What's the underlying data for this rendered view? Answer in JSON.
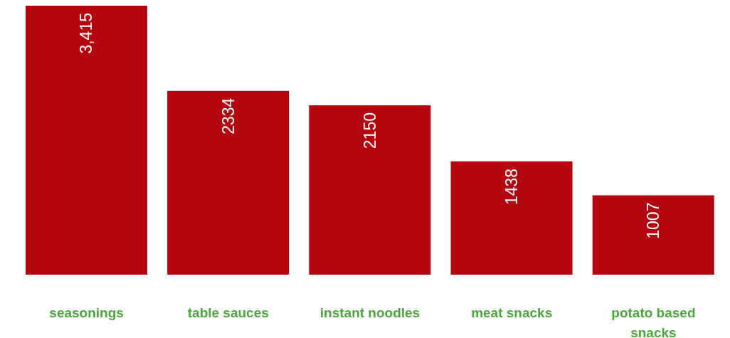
{
  "chart_data": {
    "type": "bar",
    "categories": [
      "seasonings",
      "table sauces",
      "instant noodles",
      "meat snacks",
      "potato based snacks"
    ],
    "values": [
      3415,
      2334,
      2150,
      1438,
      1007
    ],
    "value_labels": [
      "3,415",
      "2334",
      "2150",
      "1438",
      "1007"
    ],
    "color": "#b5050f"
  }
}
